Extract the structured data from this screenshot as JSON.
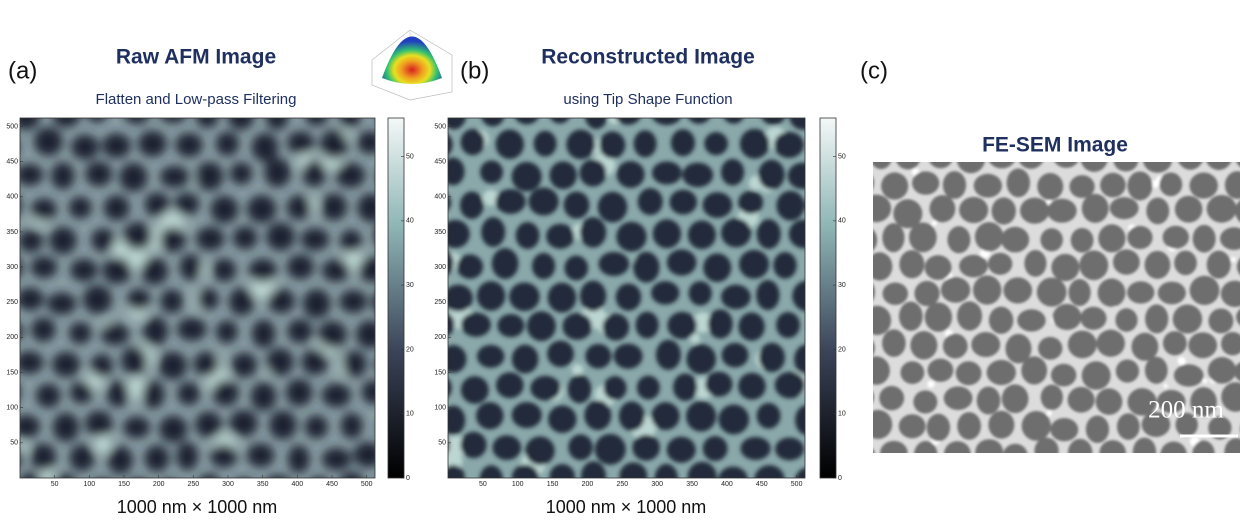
{
  "panels": [
    {
      "label": "(a)",
      "title": "Raw AFM Image",
      "subtitle": "Flatten and Low-pass Filtering",
      "caption": "1000 nm × 1000 nm",
      "xlim": [
        0,
        512
      ],
      "ylim": [
        0,
        512
      ],
      "xticks": [
        50,
        100,
        150,
        200,
        250,
        300,
        350,
        400,
        450,
        500
      ],
      "yticks": [
        50,
        100,
        150,
        200,
        250,
        300,
        350,
        400,
        450,
        500
      ],
      "clim": [
        0,
        56
      ],
      "colorbar_ticks": [
        0,
        10,
        20,
        30,
        40,
        50
      ]
    },
    {
      "label": "(b)",
      "title": "Reconstructed Image",
      "subtitle": "using Tip Shape Function",
      "caption": "1000 nm × 1000 nm",
      "xlim": [
        0,
        512
      ],
      "ylim": [
        0,
        512
      ],
      "xticks": [
        50,
        100,
        150,
        200,
        250,
        300,
        350,
        400,
        450,
        500
      ],
      "yticks": [
        50,
        100,
        150,
        200,
        250,
        300,
        350,
        400,
        450,
        500
      ],
      "clim": [
        0,
        56
      ],
      "colorbar_ticks": [
        0,
        10,
        20,
        30,
        40,
        50
      ]
    },
    {
      "label": "(c)",
      "title": "FE-SEM  Image",
      "scale_bar": "200 nm"
    }
  ]
}
